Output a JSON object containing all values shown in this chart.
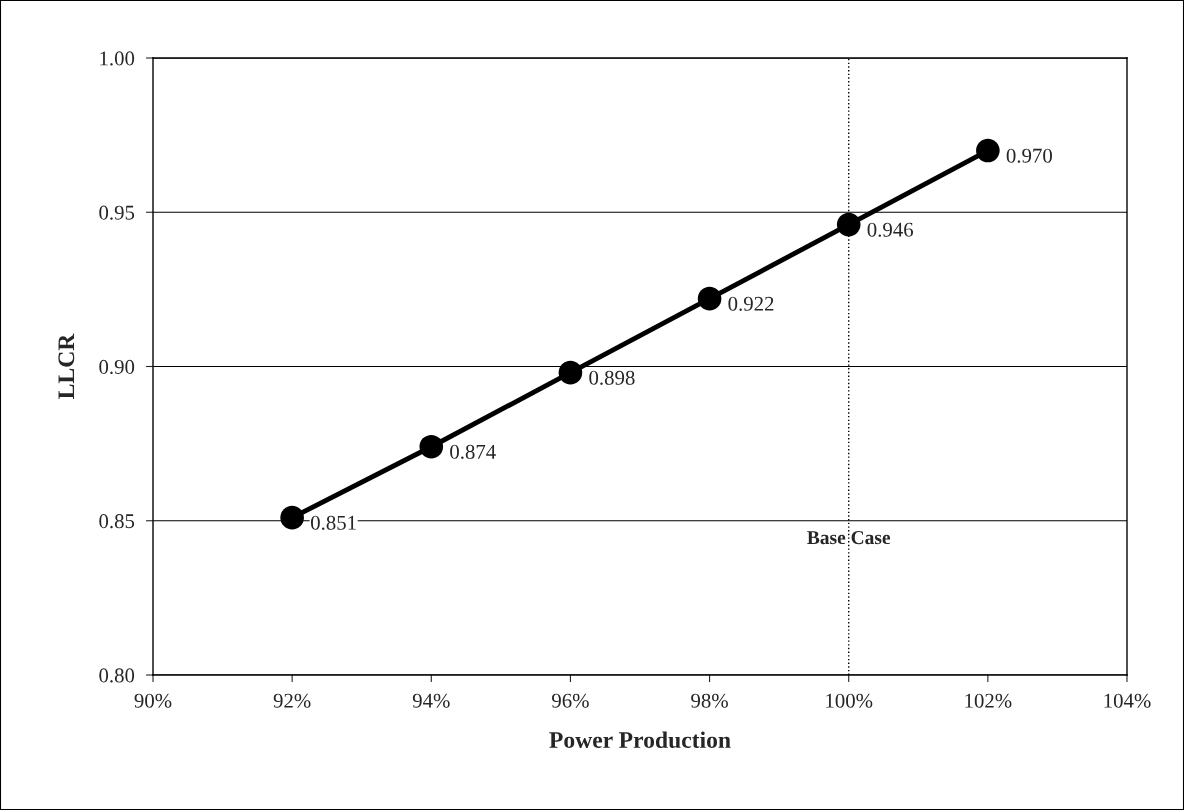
{
  "chart_data": {
    "type": "line",
    "xlabel": "Power Production",
    "ylabel": "LLCR",
    "x": [
      92,
      94,
      96,
      98,
      100,
      102
    ],
    "series": [
      {
        "color": "#000000",
        "values": [
          0.851,
          0.874,
          0.898,
          0.922,
          0.946,
          0.97
        ],
        "value_labels": [
          "0.851",
          "0.874",
          "0.898",
          "0.922",
          "0.946",
          "0.970"
        ]
      }
    ],
    "marker": "circle",
    "line_style": "solid",
    "xlim": [
      90,
      104
    ],
    "xticks": [
      {
        "value": 90,
        "label": "90%"
      },
      {
        "value": 92,
        "label": "92%"
      },
      {
        "value": 94,
        "label": "94%"
      },
      {
        "value": 96,
        "label": "96%"
      },
      {
        "value": 98,
        "label": "98%"
      },
      {
        "value": 100,
        "label": "100%"
      },
      {
        "value": 102,
        "label": "102%"
      },
      {
        "value": 104,
        "label": "104%"
      }
    ],
    "ylim": [
      0.8,
      1.0
    ],
    "yticks": [
      {
        "value": 0.8,
        "label": "0.80"
      },
      {
        "value": 0.85,
        "label": "0.85"
      },
      {
        "value": 0.9,
        "label": "0.90"
      },
      {
        "value": 0.95,
        "label": "0.95"
      },
      {
        "value": 1.0,
        "label": "1.00"
      }
    ],
    "grid": "y",
    "legend": false,
    "ref_lines": [
      {
        "axis": "x",
        "value": 100,
        "label": "Base Case",
        "line_style": "dotted",
        "color": "#000000"
      }
    ]
  }
}
